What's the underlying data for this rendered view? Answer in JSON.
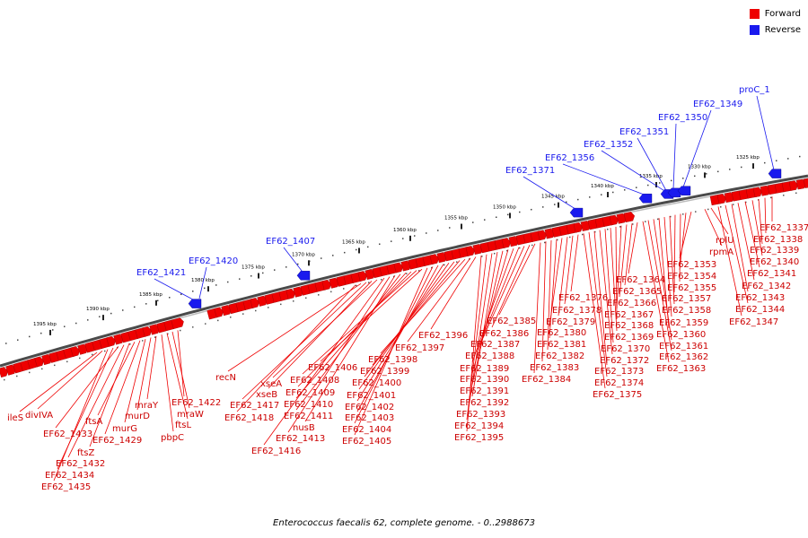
{
  "caption": "Enterococcus faecalis 62, complete genome. - 0..2988673",
  "legend": [
    {
      "label": "Forward",
      "color": "#ee0000"
    },
    {
      "label": "Reverse",
      "color": "#1a1aee"
    }
  ],
  "colors": {
    "forward": "#ee0000",
    "reverse": "#1a1aee",
    "backbone": "#888888"
  },
  "scale_unit": "kbp",
  "scale_ticks": [
    "1325 kbp",
    "1330 kbp",
    "1335 kbp",
    "1340 kbp",
    "1345 kbp",
    "1350 kbp",
    "1355 kbp",
    "1360 kbp",
    "1365 kbp",
    "1370 kbp",
    "1375 kbp",
    "1380 kbp",
    "1385 kbp",
    "1390 kbp",
    "1395 kbp"
  ],
  "reverse_labels": [
    "proC_1",
    "EF62_1349",
    "EF62_1350",
    "EF62_1351",
    "EF62_1352",
    "EF62_1356",
    "EF62_1371",
    "EF62_1407",
    "EF62_1420",
    "EF62_1421"
  ],
  "forward_labels": [
    "EF62_1337",
    "EF62_1338",
    "EF62_1339",
    "EF62_1340",
    "EF62_1341",
    "EF62_1342",
    "EF62_1343",
    "EF62_1344",
    "EF62_1347",
    "rplU",
    "rpmA",
    "EF62_1353",
    "EF62_1354",
    "EF62_1355",
    "EF62_1357",
    "EF62_1358",
    "EF62_1359",
    "EF62_1360",
    "EF62_1361",
    "EF62_1362",
    "EF62_1363",
    "EF62_1364",
    "EF62_1365",
    "EF62_1366",
    "EF62_1367",
    "EF62_1368",
    "EF62_1369",
    "EF62_1370",
    "EF62_1372",
    "EF62_1373",
    "EF62_1374",
    "EF62_1375",
    "EF62_1376",
    "EF62_1378",
    "EF62_1379",
    "EF62_1380",
    "EF62_1381",
    "EF62_1382",
    "EF62_1383",
    "EF62_1384",
    "EF62_1385",
    "EF62_1386",
    "EF62_1387",
    "EF62_1388",
    "EF62_1389",
    "EF62_1390",
    "EF62_1391",
    "EF62_1392",
    "EF62_1393",
    "EF62_1394",
    "EF62_1395",
    "EF62_1396",
    "EF62_1397",
    "EF62_1398",
    "EF62_1399",
    "EF62_1400",
    "EF62_1401",
    "EF62_1402",
    "EF62_1403",
    "EF62_1404",
    "EF62_1405",
    "EF62_1406",
    "EF62_1408",
    "EF62_1409",
    "EF62_1410",
    "EF62_1411",
    "nusB",
    "EF62_1413",
    "EF62_1416",
    "xseA",
    "xseB",
    "EF62_1417",
    "recN",
    "EF62_1418",
    "EF62_1422",
    "mraW",
    "ftsL",
    "pbpC",
    "mraY",
    "murD",
    "murG",
    "EF62_1429",
    "ftsA",
    "ftsZ",
    "EF62_1432",
    "EF62_1433",
    "EF62_1434",
    "EF62_1435",
    "divIVA",
    "ileS"
  ]
}
